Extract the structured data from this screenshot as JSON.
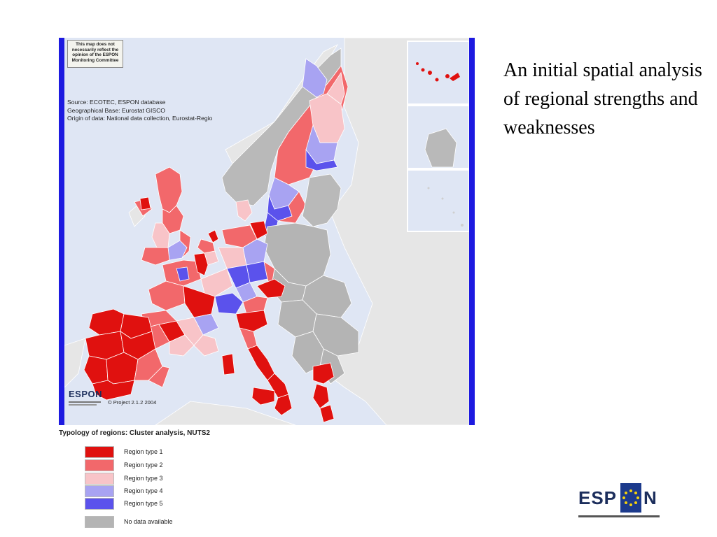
{
  "map": {
    "disclaimer": "This map does not necessarily reflect the opinion of the ESPON Monitoring Committee",
    "source_lines": [
      "Source: ECOTEC, ESPON database",
      "Geographical Base: Eurostat GISCO",
      "Origin of data: National data collection, Eurostat-Regio"
    ],
    "logo_word": "ESPON",
    "copyright": "© Project 2.1.2  2004",
    "colors": {
      "sea": "#dfe6f4",
      "non_eu_land": "#e8e8e8",
      "border_bar": "#1d1ae0"
    }
  },
  "legend": {
    "title": "Typology of regions: Cluster analysis, NUTS2",
    "items": [
      {
        "label": "Region type 1",
        "color": "#e0110f"
      },
      {
        "label": "Region type 2",
        "color": "#f2686b"
      },
      {
        "label": "Region type 3",
        "color": "#f8c4c8"
      },
      {
        "label": "Region type 4",
        "color": "#a8a3f2"
      },
      {
        "label": "Region type 5",
        "color": "#5b52ec"
      },
      {
        "label": "No data available",
        "color": "#b4b4b4"
      }
    ]
  },
  "heading": "An initial spatial analysis of regional strengths and weaknesses",
  "logo": {
    "word": "ESPON"
  }
}
